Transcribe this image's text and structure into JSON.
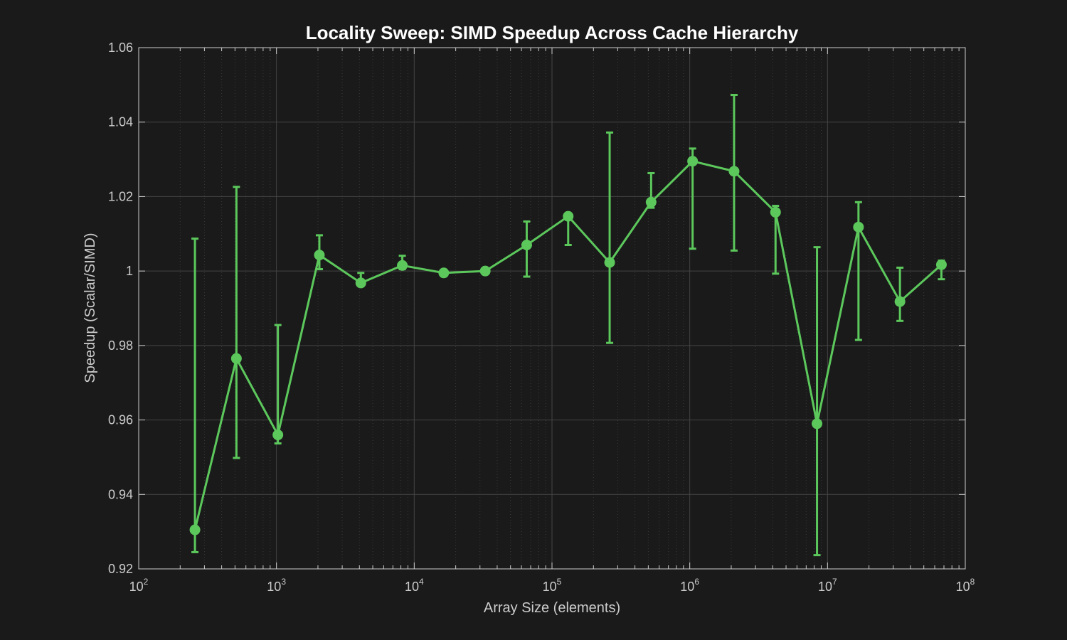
{
  "chart_data": {
    "type": "line",
    "title": "Locality Sweep: SIMD Speedup Across Cache Hierarchy",
    "xlabel": "Array Size (elements)",
    "ylabel": "Speedup (Scalar/SIMD)",
    "x_scale": "log",
    "xlim": [
      100,
      100000000
    ],
    "ylim": [
      0.92,
      1.06
    ],
    "x_ticks": [
      {
        "base": "10",
        "exp": "2",
        "value": 100
      },
      {
        "base": "10",
        "exp": "3",
        "value": 1000
      },
      {
        "base": "10",
        "exp": "4",
        "value": 10000
      },
      {
        "base": "10",
        "exp": "5",
        "value": 100000
      },
      {
        "base": "10",
        "exp": "6",
        "value": 1000000
      },
      {
        "base": "10",
        "exp": "7",
        "value": 10000000
      },
      {
        "base": "10",
        "exp": "8",
        "value": 100000000
      }
    ],
    "y_ticks": [
      {
        "label": "0.92",
        "value": 0.92
      },
      {
        "label": "0.94",
        "value": 0.94
      },
      {
        "label": "0.96",
        "value": 0.96
      },
      {
        "label": "0.98",
        "value": 0.98
      },
      {
        "label": "1",
        "value": 1.0
      },
      {
        "label": "1.02",
        "value": 1.02
      },
      {
        "label": "1.04",
        "value": 1.04
      },
      {
        "label": "1.06",
        "value": 1.06
      }
    ],
    "grid": true,
    "minor_grid": true,
    "colors": {
      "series": "#5cc85c",
      "background": "#1a1a1a",
      "axes": "#cccccc",
      "grid_major": "#444444",
      "grid_minor": "#3a3a3a"
    },
    "series": [
      {
        "x": [
          256,
          512,
          1024,
          2048,
          4096,
          8192,
          16384,
          32768,
          65536,
          131072,
          262144,
          524288,
          1048576,
          2097152,
          4194304,
          8388608,
          16777216,
          33554432,
          67108864
        ],
        "y": [
          0.9305,
          0.9765,
          0.956,
          1.0043,
          0.9968,
          1.0015,
          0.9995,
          1.0,
          1.007,
          1.0147,
          1.0023,
          1.0185,
          1.0295,
          1.0268,
          1.0158,
          0.959,
          1.0118,
          0.9918,
          1.0017
        ],
        "err_low": [
          0.9245,
          0.9498,
          0.9537,
          1.0005,
          0.9962,
          1.0005,
          0.9995,
          1.0,
          0.9985,
          1.007,
          0.9807,
          1.017,
          1.006,
          1.0055,
          0.9993,
          0.9237,
          0.9815,
          0.9866,
          0.9978
        ],
        "err_high": [
          1.0087,
          1.0226,
          0.9855,
          1.0096,
          0.9995,
          1.0041,
          0.9995,
          1.0,
          1.0133,
          1.0155,
          1.0372,
          1.0263,
          1.0329,
          1.0473,
          1.0175,
          1.0064,
          1.0185,
          1.0009,
          1.0028
        ]
      }
    ]
  }
}
